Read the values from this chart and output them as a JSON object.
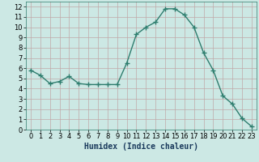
{
  "x": [
    0,
    1,
    2,
    3,
    4,
    5,
    6,
    7,
    8,
    9,
    10,
    11,
    12,
    13,
    14,
    15,
    16,
    17,
    18,
    19,
    20,
    21,
    22,
    23
  ],
  "y": [
    5.8,
    5.3,
    4.5,
    4.7,
    5.2,
    4.5,
    4.4,
    4.4,
    4.4,
    4.4,
    6.5,
    9.3,
    10.0,
    10.5,
    11.8,
    11.8,
    11.2,
    10.0,
    7.5,
    5.8,
    3.3,
    2.5,
    1.1,
    0.3
  ],
  "line_color": "#2e7d6e",
  "marker": "+",
  "markersize": 4,
  "linewidth": 1.0,
  "bg_color": "#cce8e4",
  "grid_color": "#c0a8a8",
  "xlabel": "Humidex (Indice chaleur)",
  "xlabel_fontsize": 7,
  "xlabel_color": "#1a3a5c",
  "tick_fontsize": 6,
  "xlim": [
    -0.5,
    23.5
  ],
  "ylim": [
    0,
    12.5
  ],
  "yticks": [
    0,
    1,
    2,
    3,
    4,
    5,
    6,
    7,
    8,
    9,
    10,
    11,
    12
  ],
  "xticks": [
    0,
    1,
    2,
    3,
    4,
    5,
    6,
    7,
    8,
    9,
    10,
    11,
    12,
    13,
    14,
    15,
    16,
    17,
    18,
    19,
    20,
    21,
    22,
    23
  ]
}
